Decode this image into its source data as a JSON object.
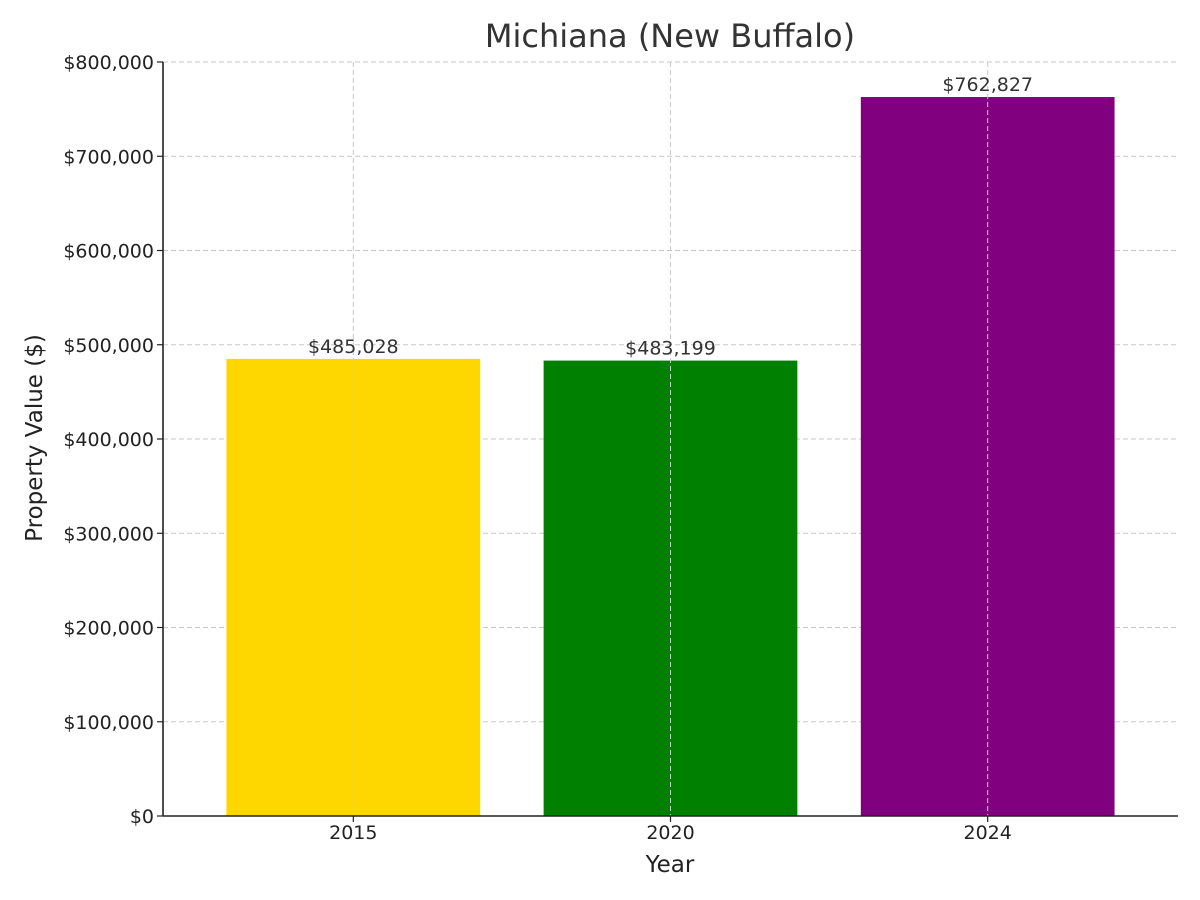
{
  "chart_data": {
    "type": "bar",
    "title": "Michiana (New Buffalo)",
    "xlabel": "Year",
    "ylabel": "Property Value ($)",
    "categories": [
      "2015",
      "2020",
      "2024"
    ],
    "values": [
      485028,
      483199,
      762827
    ],
    "value_labels": [
      "$485,028",
      "$483,199",
      "$762,827"
    ],
    "colors": [
      "#FFD700",
      "#008000",
      "#800080"
    ],
    "ylim": [
      0,
      800000
    ],
    "yticks": [
      0,
      100000,
      200000,
      300000,
      400000,
      500000,
      600000,
      700000,
      800000
    ],
    "ytick_labels": [
      "$0",
      "$100,000",
      "$200,000",
      "$300,000",
      "$400,000",
      "$500,000",
      "$600,000",
      "$700,000",
      "$800,000"
    ],
    "grid": true,
    "legend": false
  }
}
